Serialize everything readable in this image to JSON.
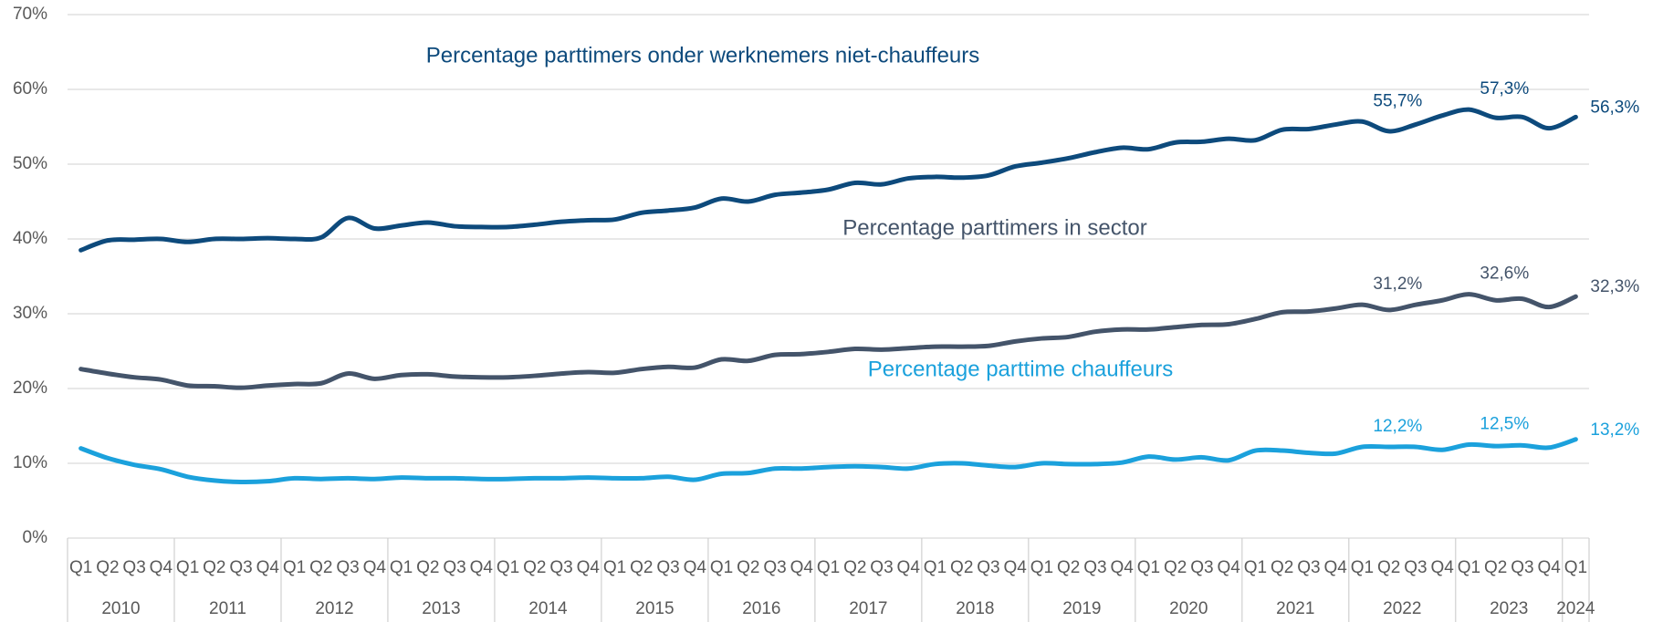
{
  "chart_data": {
    "type": "line",
    "categories": [
      "Q1",
      "Q2",
      "Q3",
      "Q4",
      "Q1",
      "Q2",
      "Q3",
      "Q4",
      "Q1",
      "Q2",
      "Q3",
      "Q4",
      "Q1",
      "Q2",
      "Q3",
      "Q4",
      "Q1",
      "Q2",
      "Q3",
      "Q4",
      "Q1",
      "Q2",
      "Q3",
      "Q4",
      "Q1",
      "Q2",
      "Q3",
      "Q4",
      "Q1",
      "Q2",
      "Q3",
      "Q4",
      "Q1",
      "Q2",
      "Q3",
      "Q4",
      "Q1",
      "Q2",
      "Q3",
      "Q4",
      "Q1",
      "Q2",
      "Q3",
      "Q4",
      "Q1",
      "Q2",
      "Q3",
      "Q4",
      "Q1",
      "Q2",
      "Q3",
      "Q4",
      "Q1",
      "Q2",
      "Q3",
      "Q4",
      "Q1"
    ],
    "years": [
      "2010",
      "2011",
      "2012",
      "2013",
      "2014",
      "2015",
      "2016",
      "2017",
      "2018",
      "2019",
      "2020",
      "2021",
      "2022",
      "2023",
      "2024"
    ],
    "ylim": [
      0,
      70
    ],
    "yticks": [
      {
        "value": 0,
        "label": "0%"
      },
      {
        "value": 10,
        "label": "10%"
      },
      {
        "value": 20,
        "label": "20%"
      },
      {
        "value": 30,
        "label": "30%"
      },
      {
        "value": 40,
        "label": "40%"
      },
      {
        "value": 50,
        "label": "50%"
      },
      {
        "value": 60,
        "label": "60%"
      },
      {
        "value": 70,
        "label": "70%"
      }
    ],
    "grid": true,
    "series": [
      {
        "name": "Percentage parttimers onder werknemers niet-chauffeurs",
        "color": "#0d4a7c",
        "values": [
          38.5,
          39.8,
          39.9,
          40.0,
          39.6,
          40.0,
          40.0,
          40.1,
          40.0,
          40.2,
          42.8,
          41.4,
          41.8,
          42.2,
          41.7,
          41.6,
          41.6,
          41.9,
          42.3,
          42.5,
          42.6,
          43.5,
          43.8,
          44.2,
          45.4,
          45.0,
          45.9,
          46.2,
          46.6,
          47.5,
          47.3,
          48.1,
          48.3,
          48.2,
          48.5,
          49.7,
          50.2,
          50.8,
          51.6,
          52.2,
          52.0,
          52.9,
          53.0,
          53.4,
          53.2,
          54.6,
          54.7,
          55.3,
          55.7,
          54.4,
          55.3,
          56.5,
          57.3,
          56.2,
          56.3,
          54.8,
          56.3
        ],
        "value_labels": [
          null,
          null,
          null,
          null,
          null,
          null,
          null,
          null,
          null,
          null,
          null,
          null,
          null,
          null,
          null,
          null,
          null,
          null,
          null,
          null,
          null,
          null,
          null,
          null,
          null,
          null,
          null,
          null,
          null,
          null,
          null,
          null,
          null,
          null,
          null,
          null,
          null,
          null,
          null,
          null,
          null,
          null,
          null,
          null,
          null,
          null,
          null,
          null,
          "55,7%",
          null,
          null,
          null,
          "57,3%",
          null,
          null,
          null,
          "56,3%"
        ]
      },
      {
        "name": "Percentage parttimers in sector",
        "color": "#44546a",
        "values": [
          22.6,
          22.0,
          21.5,
          21.2,
          20.4,
          20.3,
          20.1,
          20.4,
          20.6,
          20.7,
          22.0,
          21.3,
          21.8,
          21.9,
          21.6,
          21.5,
          21.5,
          21.7,
          22.0,
          22.2,
          22.1,
          22.6,
          22.9,
          22.8,
          23.9,
          23.7,
          24.5,
          24.6,
          24.9,
          25.3,
          25.2,
          25.4,
          25.6,
          25.6,
          25.7,
          26.3,
          26.7,
          26.9,
          27.6,
          27.9,
          27.9,
          28.2,
          28.5,
          28.6,
          29.3,
          30.2,
          30.3,
          30.7,
          31.2,
          30.5,
          31.2,
          31.8,
          32.6,
          31.8,
          32.0,
          30.9,
          32.3
        ],
        "value_labels": [
          null,
          null,
          null,
          null,
          null,
          null,
          null,
          null,
          null,
          null,
          null,
          null,
          null,
          null,
          null,
          null,
          null,
          null,
          null,
          null,
          null,
          null,
          null,
          null,
          null,
          null,
          null,
          null,
          null,
          null,
          null,
          null,
          null,
          null,
          null,
          null,
          null,
          null,
          null,
          null,
          null,
          null,
          null,
          null,
          null,
          null,
          null,
          null,
          "31,2%",
          null,
          null,
          null,
          "32,6%",
          null,
          null,
          null,
          "32,3%"
        ]
      },
      {
        "name": "Percentage parttime chauffeurs",
        "color": "#1ba1dc",
        "values": [
          12.0,
          10.7,
          9.8,
          9.2,
          8.2,
          7.7,
          7.5,
          7.6,
          8.0,
          7.9,
          8.0,
          7.9,
          8.1,
          8.0,
          8.0,
          7.9,
          7.9,
          8.0,
          8.0,
          8.1,
          8.0,
          8.0,
          8.2,
          7.8,
          8.6,
          8.7,
          9.3,
          9.3,
          9.5,
          9.6,
          9.5,
          9.3,
          9.9,
          10.0,
          9.7,
          9.5,
          10.0,
          9.9,
          9.9,
          10.1,
          10.9,
          10.5,
          10.8,
          10.4,
          11.7,
          11.7,
          11.4,
          11.3,
          12.2,
          12.2,
          12.2,
          11.8,
          12.5,
          12.3,
          12.4,
          12.1,
          13.2
        ],
        "value_labels": [
          null,
          null,
          null,
          null,
          null,
          null,
          null,
          null,
          null,
          null,
          null,
          null,
          null,
          null,
          null,
          null,
          null,
          null,
          null,
          null,
          null,
          null,
          null,
          null,
          null,
          null,
          null,
          null,
          null,
          null,
          null,
          null,
          null,
          null,
          null,
          null,
          null,
          null,
          null,
          null,
          null,
          null,
          null,
          null,
          null,
          null,
          null,
          null,
          "12,2%",
          null,
          null,
          null,
          "12,5%",
          null,
          null,
          null,
          "13,2%"
        ]
      }
    ]
  }
}
